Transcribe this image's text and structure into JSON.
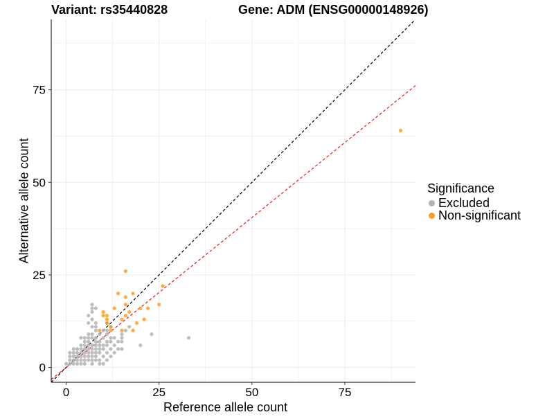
{
  "title_left": "Variant: rs35440828",
  "title_right": "Gene: ADM (ENSG00000148926)",
  "chart_data": {
    "type": "scatter",
    "xlabel": "Reference allele count",
    "ylabel": "Alternative allele count",
    "xlim": [
      -4,
      94
    ],
    "ylim": [
      -4,
      94
    ],
    "x_ticks": [
      0,
      25,
      50,
      75
    ],
    "y_ticks": [
      0,
      25,
      50,
      75
    ],
    "grid": true,
    "legend_position": "right",
    "legend_title": "Significance",
    "reference_lines": [
      {
        "description": "identity line y = x",
        "slope": 1.0,
        "intercept": 0,
        "color": "#000000",
        "style": "dashed"
      },
      {
        "description": "fitted line",
        "slope": 0.81,
        "intercept": 0,
        "color": "#e41a1c",
        "style": "dashed"
      }
    ],
    "series": [
      {
        "name": "Excluded",
        "color": "#b3b3b3",
        "points": [
          [
            0,
            1
          ],
          [
            1,
            1
          ],
          [
            1,
            2
          ],
          [
            1,
            3
          ],
          [
            1,
            4
          ],
          [
            2,
            1
          ],
          [
            2,
            2
          ],
          [
            2,
            3
          ],
          [
            2,
            4
          ],
          [
            2,
            5
          ],
          [
            3,
            1
          ],
          [
            3,
            2
          ],
          [
            3,
            3
          ],
          [
            3,
            4
          ],
          [
            3,
            5
          ],
          [
            4,
            1
          ],
          [
            4,
            2
          ],
          [
            4,
            3
          ],
          [
            4,
            4
          ],
          [
            4,
            5
          ],
          [
            4,
            6
          ],
          [
            4,
            8
          ],
          [
            5,
            1
          ],
          [
            5,
            2
          ],
          [
            5,
            3
          ],
          [
            5,
            4
          ],
          [
            5,
            5
          ],
          [
            5,
            6
          ],
          [
            5,
            7
          ],
          [
            5,
            8
          ],
          [
            6,
            2
          ],
          [
            6,
            3
          ],
          [
            6,
            4
          ],
          [
            6,
            5
          ],
          [
            6,
            6
          ],
          [
            6,
            7
          ],
          [
            6,
            8
          ],
          [
            6,
            9
          ],
          [
            6,
            12
          ],
          [
            6,
            14
          ],
          [
            7,
            1
          ],
          [
            7,
            2
          ],
          [
            7,
            3
          ],
          [
            7,
            4
          ],
          [
            7,
            5
          ],
          [
            7,
            6
          ],
          [
            7,
            8
          ],
          [
            7,
            9
          ],
          [
            7,
            11
          ],
          [
            7,
            13
          ],
          [
            7,
            15
          ],
          [
            7,
            16
          ],
          [
            7,
            17
          ],
          [
            8,
            2
          ],
          [
            8,
            3
          ],
          [
            8,
            4
          ],
          [
            8,
            5
          ],
          [
            8,
            6
          ],
          [
            8,
            7
          ],
          [
            8,
            8
          ],
          [
            8,
            10
          ],
          [
            8,
            11
          ],
          [
            8,
            12
          ],
          [
            8,
            16
          ],
          [
            9,
            1
          ],
          [
            9,
            2
          ],
          [
            9,
            4
          ],
          [
            9,
            5
          ],
          [
            9,
            6
          ],
          [
            9,
            7
          ],
          [
            9,
            9
          ],
          [
            10,
            1
          ],
          [
            10,
            3
          ],
          [
            10,
            5
          ],
          [
            10,
            6
          ],
          [
            10,
            8
          ],
          [
            10,
            10
          ],
          [
            11,
            2
          ],
          [
            11,
            4
          ],
          [
            11,
            6
          ],
          [
            11,
            7
          ],
          [
            11,
            9
          ],
          [
            11,
            10
          ],
          [
            11,
            12
          ],
          [
            12,
            3
          ],
          [
            12,
            5
          ],
          [
            12,
            7
          ],
          [
            12,
            8
          ],
          [
            12,
            11
          ],
          [
            13,
            4
          ],
          [
            13,
            6
          ],
          [
            13,
            8
          ],
          [
            14,
            5
          ],
          [
            14,
            7
          ],
          [
            15,
            5
          ],
          [
            15,
            7
          ],
          [
            15,
            8
          ],
          [
            15,
            9
          ],
          [
            16,
            10
          ],
          [
            17,
            11
          ],
          [
            20,
            6
          ],
          [
            23,
            9
          ],
          [
            33,
            8
          ]
        ]
      },
      {
        "name": "Non-significant",
        "color": "#ff9e1b",
        "points": [
          [
            9,
            10
          ],
          [
            10,
            14
          ],
          [
            10,
            15
          ],
          [
            11,
            12
          ],
          [
            11,
            13
          ],
          [
            11,
            14
          ],
          [
            12,
            10
          ],
          [
            12,
            11
          ],
          [
            13,
            16
          ],
          [
            14,
            20
          ],
          [
            15,
            10
          ],
          [
            15,
            13
          ],
          [
            16,
            14
          ],
          [
            16,
            17
          ],
          [
            16,
            19
          ],
          [
            16,
            26
          ],
          [
            17,
            15
          ],
          [
            18,
            20
          ],
          [
            18,
            10
          ],
          [
            19,
            12
          ],
          [
            20,
            16
          ],
          [
            21,
            13
          ],
          [
            22,
            16
          ],
          [
            25,
            17
          ],
          [
            26,
            22
          ],
          [
            90,
            64
          ]
        ]
      }
    ]
  }
}
